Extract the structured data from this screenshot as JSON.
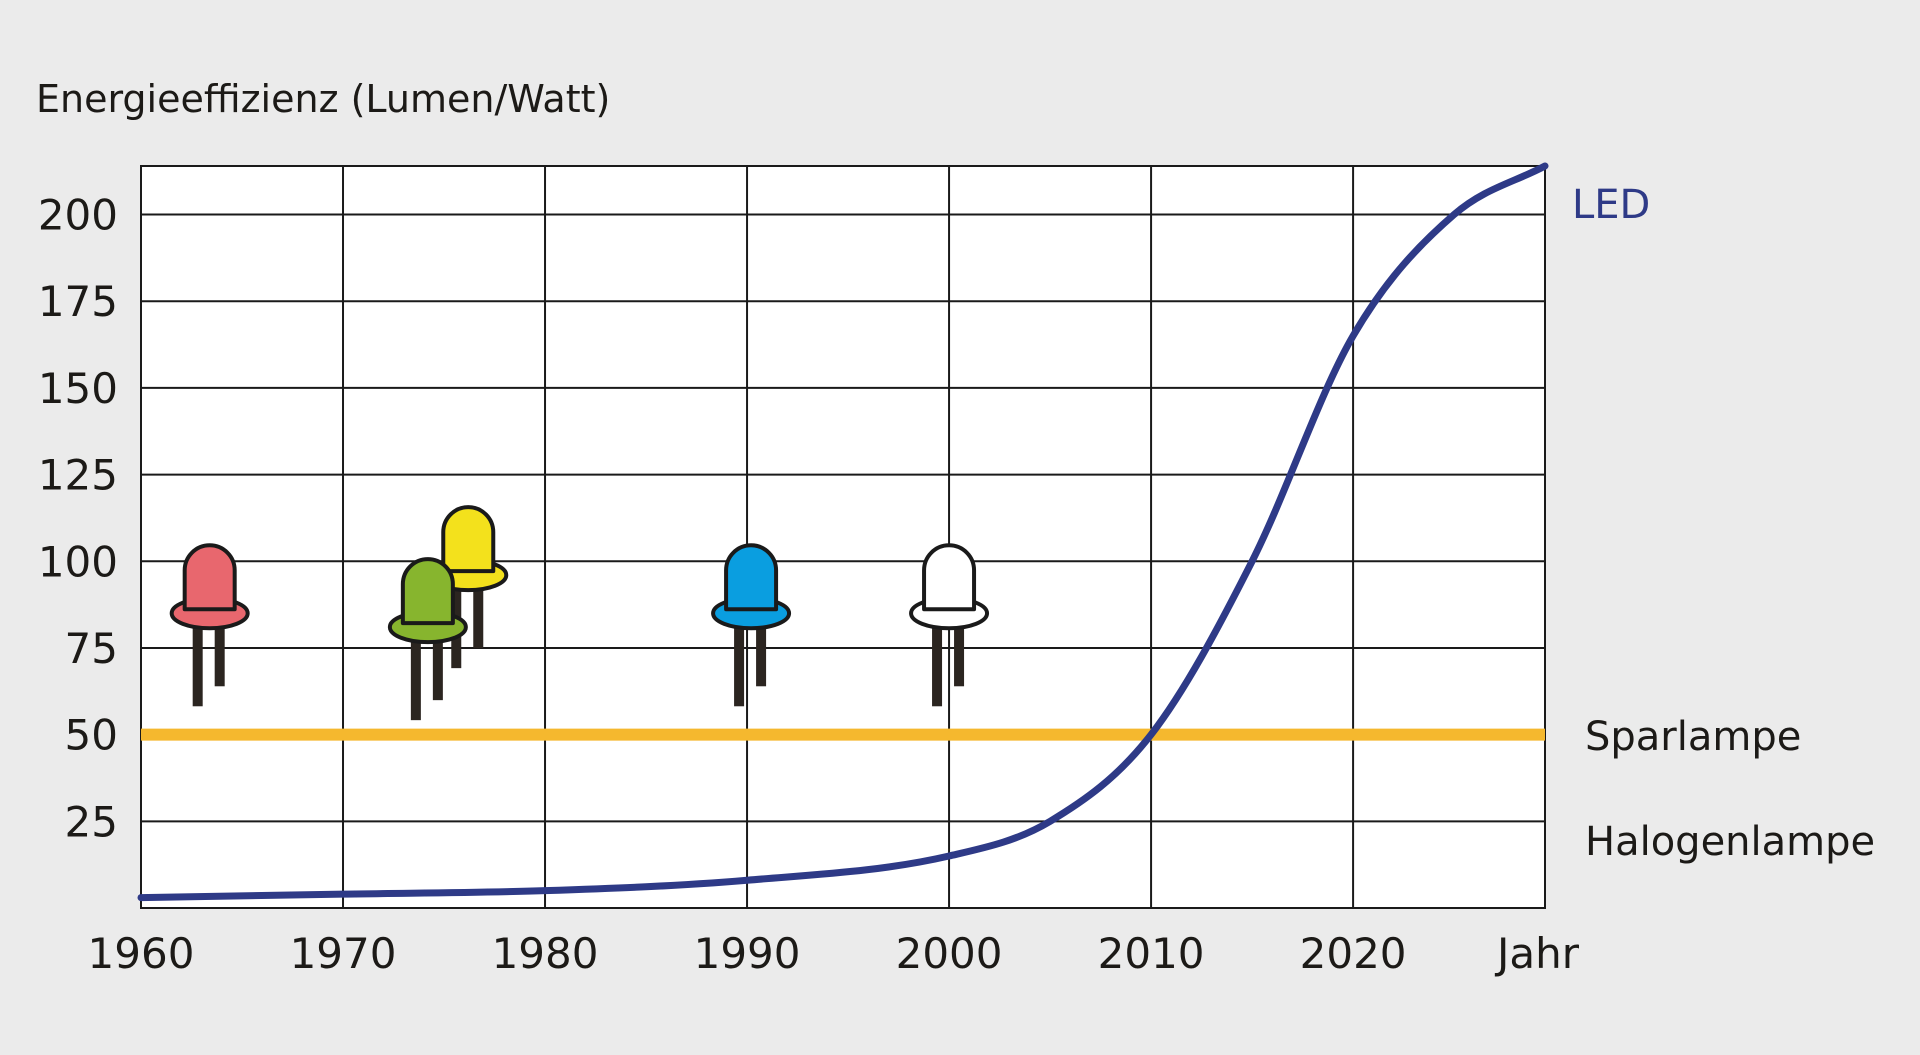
{
  "chart_data": {
    "type": "line",
    "title": "",
    "ylabel": "Energieeffizienz (Lumen/Watt)",
    "xlabel": "Jahr",
    "xlim": [
      1960,
      2029.5
    ],
    "ylim": [
      0,
      214
    ],
    "x_ticks": [
      1960,
      1970,
      1980,
      1990,
      2000,
      2010,
      2020
    ],
    "y_ticks": [
      25,
      50,
      75,
      100,
      125,
      150,
      175,
      200
    ],
    "grid": true,
    "series": [
      {
        "name": "LED",
        "color": "#2e3a87",
        "x": [
          1960,
          1970,
          1980,
          1990,
          2000,
          2005,
          2010,
          2015,
          2020,
          2025,
          2029.5
        ],
        "y": [
          3,
          4,
          5,
          8,
          15,
          25,
          50,
          100,
          165,
          200,
          214
        ]
      },
      {
        "name": "Sparlampe",
        "color": "#f5b82e",
        "x": [
          1960,
          2029.5
        ],
        "y": [
          50,
          50
        ]
      }
    ],
    "annotations": [
      {
        "text": "Halogenlampe",
        "x": 2030,
        "y": 19
      }
    ],
    "led_icons": [
      {
        "name": "red-led",
        "color": "#e8676e",
        "x": 1963.4,
        "y": 85
      },
      {
        "name": "yellow-led",
        "color": "#f3e11c",
        "x": 1976.2,
        "y": 96
      },
      {
        "name": "green-led",
        "color": "#87b52e",
        "x": 1974.2,
        "y": 81
      },
      {
        "name": "blue-led",
        "color": "#0a9ee0",
        "x": 1990.2,
        "y": 85
      },
      {
        "name": "white-led",
        "color": "#ffffff",
        "x": 2000.0,
        "y": 85
      }
    ],
    "colors": {
      "background": "#ebebeb",
      "plot_background": "#ffffff",
      "text": "#1c1a17",
      "led_leg": "#2b2520",
      "outline": "#1a1a1a"
    }
  }
}
